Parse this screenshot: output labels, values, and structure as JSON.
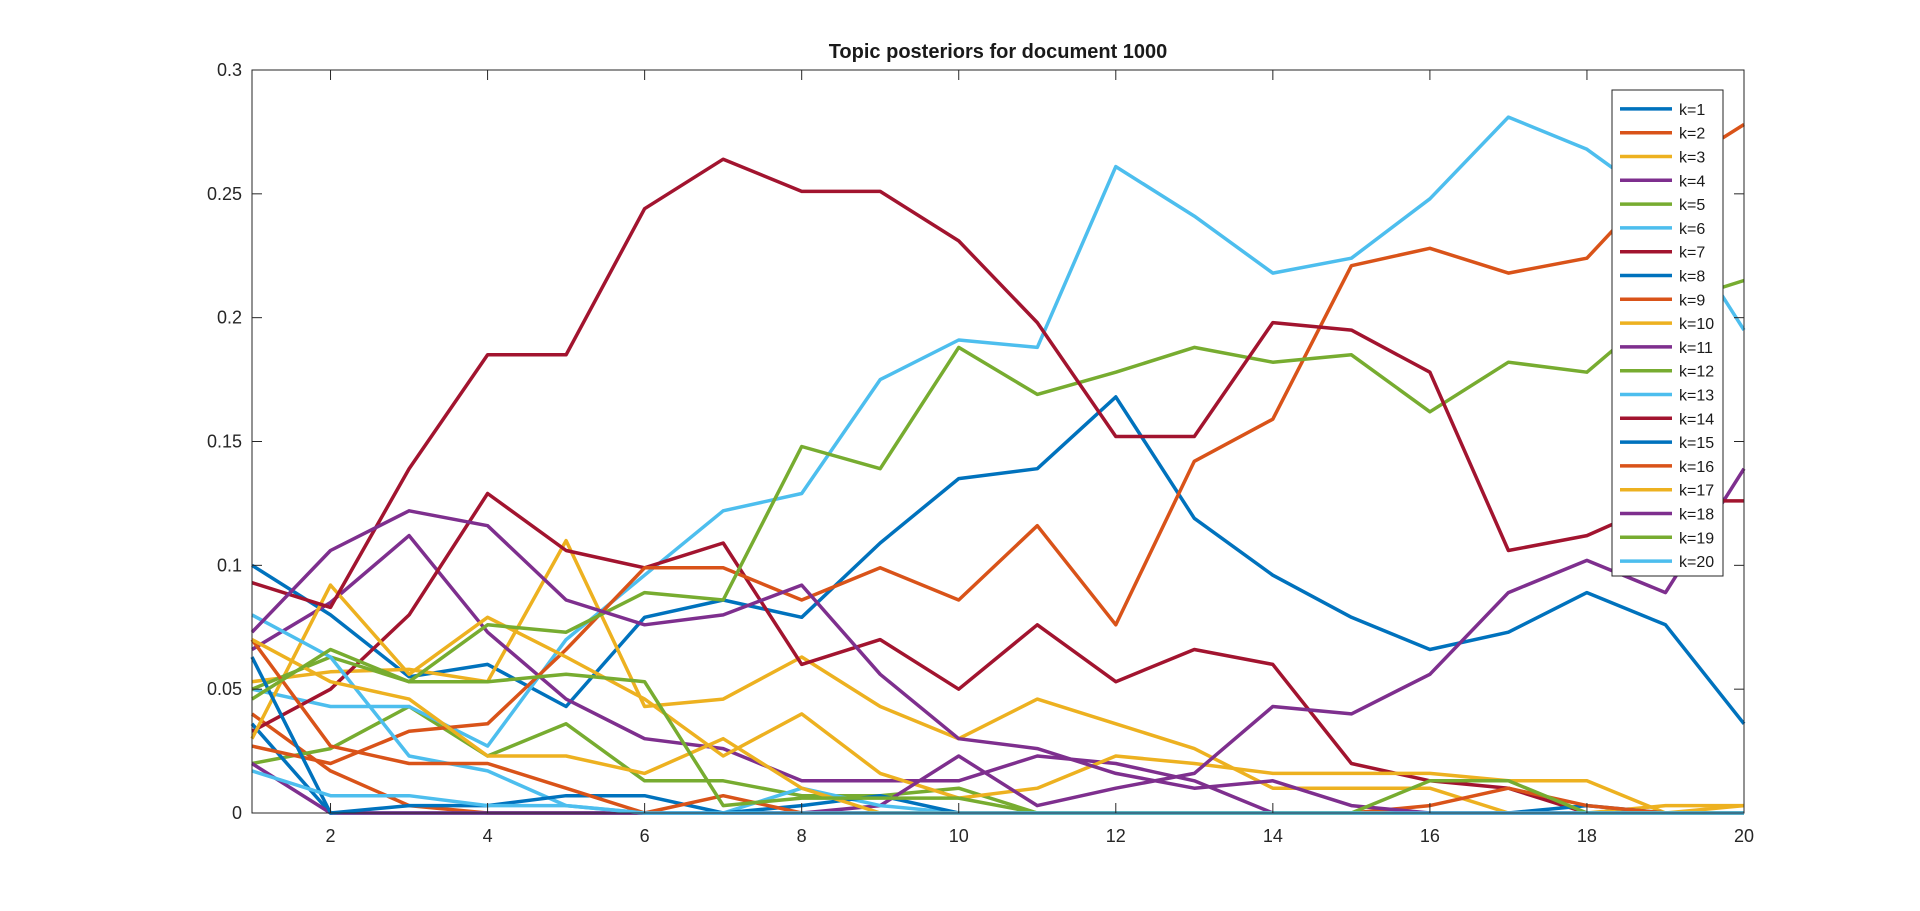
{
  "chart_data": {
    "type": "line",
    "title": "Topic posteriors for document 1000",
    "xlabel": "",
    "ylabel": "",
    "xlim": [
      1,
      20
    ],
    "ylim": [
      0,
      0.3
    ],
    "xticks": [
      2,
      4,
      6,
      8,
      10,
      12,
      14,
      16,
      18,
      20
    ],
    "yticks": [
      0,
      0.05,
      0.1,
      0.15,
      0.2,
      0.25,
      0.3
    ],
    "ytick_labels": [
      "0",
      "0.05",
      "0.1",
      "0.15",
      "0.2",
      "0.25",
      "0.3"
    ],
    "grid": false,
    "legend_position": "top-right",
    "x": [
      1,
      2,
      3,
      4,
      5,
      6,
      7,
      8,
      9,
      10,
      11,
      12,
      13,
      14,
      15,
      16,
      17,
      18,
      19,
      20
    ],
    "series": [
      {
        "name": "k=1",
        "color": "#0072BD",
        "values": [
          0.1,
          0.08,
          0.055,
          0.06,
          0.043,
          0.079,
          0.086,
          0.079,
          0.109,
          0.135,
          0.139,
          0.168,
          0.119,
          0.096,
          0.079,
          0.066,
          0.073,
          0.089,
          0.076,
          0.036
        ]
      },
      {
        "name": "k=2",
        "color": "#D95319",
        "values": [
          0.04,
          0.017,
          0.003,
          0.0,
          0.0,
          0.0,
          0.0,
          0.0,
          0.0,
          0.0,
          0.0,
          0.0,
          0.0,
          0.0,
          0.0,
          0.0,
          0.0,
          0.0,
          0.0,
          0.0
        ]
      },
      {
        "name": "k=3",
        "color": "#EDB120",
        "values": [
          0.053,
          0.057,
          0.058,
          0.053,
          0.11,
          0.043,
          0.046,
          0.063,
          0.043,
          0.03,
          0.046,
          0.036,
          0.026,
          0.01,
          0.01,
          0.01,
          0.0,
          0.0,
          0.003,
          0.003
        ]
      },
      {
        "name": "k=4",
        "color": "#7E2F8E",
        "values": [
          0.066,
          0.085,
          0.112,
          0.073,
          0.046,
          0.03,
          0.026,
          0.013,
          0.013,
          0.013,
          0.023,
          0.02,
          0.013,
          0.0,
          0.0,
          0.0,
          0.0,
          0.0,
          0.0,
          0.0
        ]
      },
      {
        "name": "k=5",
        "color": "#77AC30",
        "values": [
          0.02,
          0.026,
          0.043,
          0.023,
          0.036,
          0.013,
          0.013,
          0.007,
          0.007,
          0.01,
          0.0,
          0.0,
          0.0,
          0.0,
          0.0,
          0.0,
          0.0,
          0.0,
          0.0,
          0.0
        ]
      },
      {
        "name": "k=6",
        "color": "#4DBEEE",
        "values": [
          0.05,
          0.043,
          0.043,
          0.027,
          0.07,
          0.096,
          0.122,
          0.129,
          0.175,
          0.191,
          0.188,
          0.261,
          0.241,
          0.218,
          0.224,
          0.248,
          0.281,
          0.268,
          0.245,
          0.195
        ]
      },
      {
        "name": "k=7",
        "color": "#A2142F",
        "values": [
          0.033,
          0.05,
          0.08,
          0.129,
          0.106,
          0.099,
          0.109,
          0.06,
          0.07,
          0.05,
          0.076,
          0.053,
          0.066,
          0.06,
          0.02,
          0.013,
          0.01,
          0.0,
          0.0,
          0.0
        ]
      },
      {
        "name": "k=8",
        "color": "#0072BD",
        "values": [
          0.036,
          0.0,
          0.0,
          0.0,
          0.0,
          0.0,
          0.0,
          0.0,
          0.0,
          0.0,
          0.0,
          0.0,
          0.0,
          0.0,
          0.0,
          0.0,
          0.0,
          0.0,
          0.0,
          0.0
        ]
      },
      {
        "name": "k=9",
        "color": "#D95319",
        "values": [
          0.027,
          0.02,
          0.033,
          0.036,
          0.066,
          0.099,
          0.099,
          0.086,
          0.099,
          0.086,
          0.116,
          0.076,
          0.142,
          0.159,
          0.221,
          0.228,
          0.218,
          0.224,
          0.258,
          0.278
        ]
      },
      {
        "name": "k=10",
        "color": "#EDB120",
        "values": [
          0.03,
          0.092,
          0.056,
          0.079,
          0.063,
          0.046,
          0.023,
          0.04,
          0.016,
          0.006,
          0.01,
          0.023,
          0.02,
          0.016,
          0.016,
          0.016,
          0.013,
          0.013,
          0.0,
          0.0
        ]
      },
      {
        "name": "k=11",
        "color": "#7E2F8E",
        "values": [
          0.02,
          0.0,
          0.0,
          0.0,
          0.0,
          0.0,
          0.0,
          0.0,
          0.003,
          0.023,
          0.003,
          0.01,
          0.016,
          0.043,
          0.04,
          0.056,
          0.089,
          0.102,
          0.089,
          0.139
        ]
      },
      {
        "name": "k=12",
        "color": "#77AC30",
        "values": [
          0.05,
          0.063,
          0.053,
          0.076,
          0.073,
          0.089,
          0.086,
          0.148,
          0.139,
          0.188,
          0.169,
          0.178,
          0.188,
          0.182,
          0.185,
          0.162,
          0.182,
          0.178,
          0.205,
          0.215
        ]
      },
      {
        "name": "k=13",
        "color": "#4DBEEE",
        "values": [
          0.08,
          0.063,
          0.023,
          0.017,
          0.003,
          0.0,
          0.0,
          0.01,
          0.003,
          0.0,
          0.0,
          0.0,
          0.0,
          0.0,
          0.0,
          0.0,
          0.0,
          0.0,
          0.0,
          0.0
        ]
      },
      {
        "name": "k=14",
        "color": "#A2142F",
        "values": [
          0.093,
          0.083,
          0.139,
          0.185,
          0.185,
          0.244,
          0.264,
          0.251,
          0.251,
          0.231,
          0.198,
          0.152,
          0.152,
          0.198,
          0.195,
          0.178,
          0.106,
          0.112,
          0.126,
          0.126
        ]
      },
      {
        "name": "k=15",
        "color": "#0072BD",
        "values": [
          0.063,
          0.0,
          0.003,
          0.003,
          0.007,
          0.007,
          0.0,
          0.003,
          0.007,
          0.0,
          0.0,
          0.0,
          0.0,
          0.0,
          0.0,
          0.0,
          0.0,
          0.003,
          0.0,
          0.0
        ]
      },
      {
        "name": "k=16",
        "color": "#D95319",
        "values": [
          0.07,
          0.027,
          0.02,
          0.02,
          0.01,
          0.0,
          0.007,
          0.0,
          0.0,
          0.0,
          0.0,
          0.0,
          0.0,
          0.0,
          0.0,
          0.003,
          0.01,
          0.003,
          0.0,
          0.0
        ]
      },
      {
        "name": "k=17",
        "color": "#EDB120",
        "values": [
          0.07,
          0.053,
          0.046,
          0.023,
          0.023,
          0.016,
          0.03,
          0.01,
          0.0,
          0.0,
          0.0,
          0.0,
          0.0,
          0.0,
          0.0,
          0.0,
          0.0,
          0.0,
          0.0,
          0.003
        ]
      },
      {
        "name": "k=18",
        "color": "#7E2F8E",
        "values": [
          0.073,
          0.106,
          0.122,
          0.116,
          0.086,
          0.076,
          0.08,
          0.092,
          0.056,
          0.03,
          0.026,
          0.016,
          0.01,
          0.013,
          0.003,
          0.0,
          0.0,
          0.0,
          0.0,
          0.0
        ]
      },
      {
        "name": "k=19",
        "color": "#77AC30",
        "values": [
          0.046,
          0.066,
          0.053,
          0.053,
          0.056,
          0.053,
          0.003,
          0.006,
          0.006,
          0.006,
          0.0,
          0.0,
          0.0,
          0.0,
          0.0,
          0.013,
          0.013,
          0.0,
          0.0,
          0.0
        ]
      },
      {
        "name": "k=20",
        "color": "#4DBEEE",
        "values": [
          0.017,
          0.007,
          0.007,
          0.003,
          0.003,
          0.0,
          0.0,
          0.0,
          0.0,
          0.0,
          0.0,
          0.0,
          0.0,
          0.0,
          0.0,
          0.0,
          0.0,
          0.0,
          0.0,
          0.0
        ]
      }
    ]
  }
}
